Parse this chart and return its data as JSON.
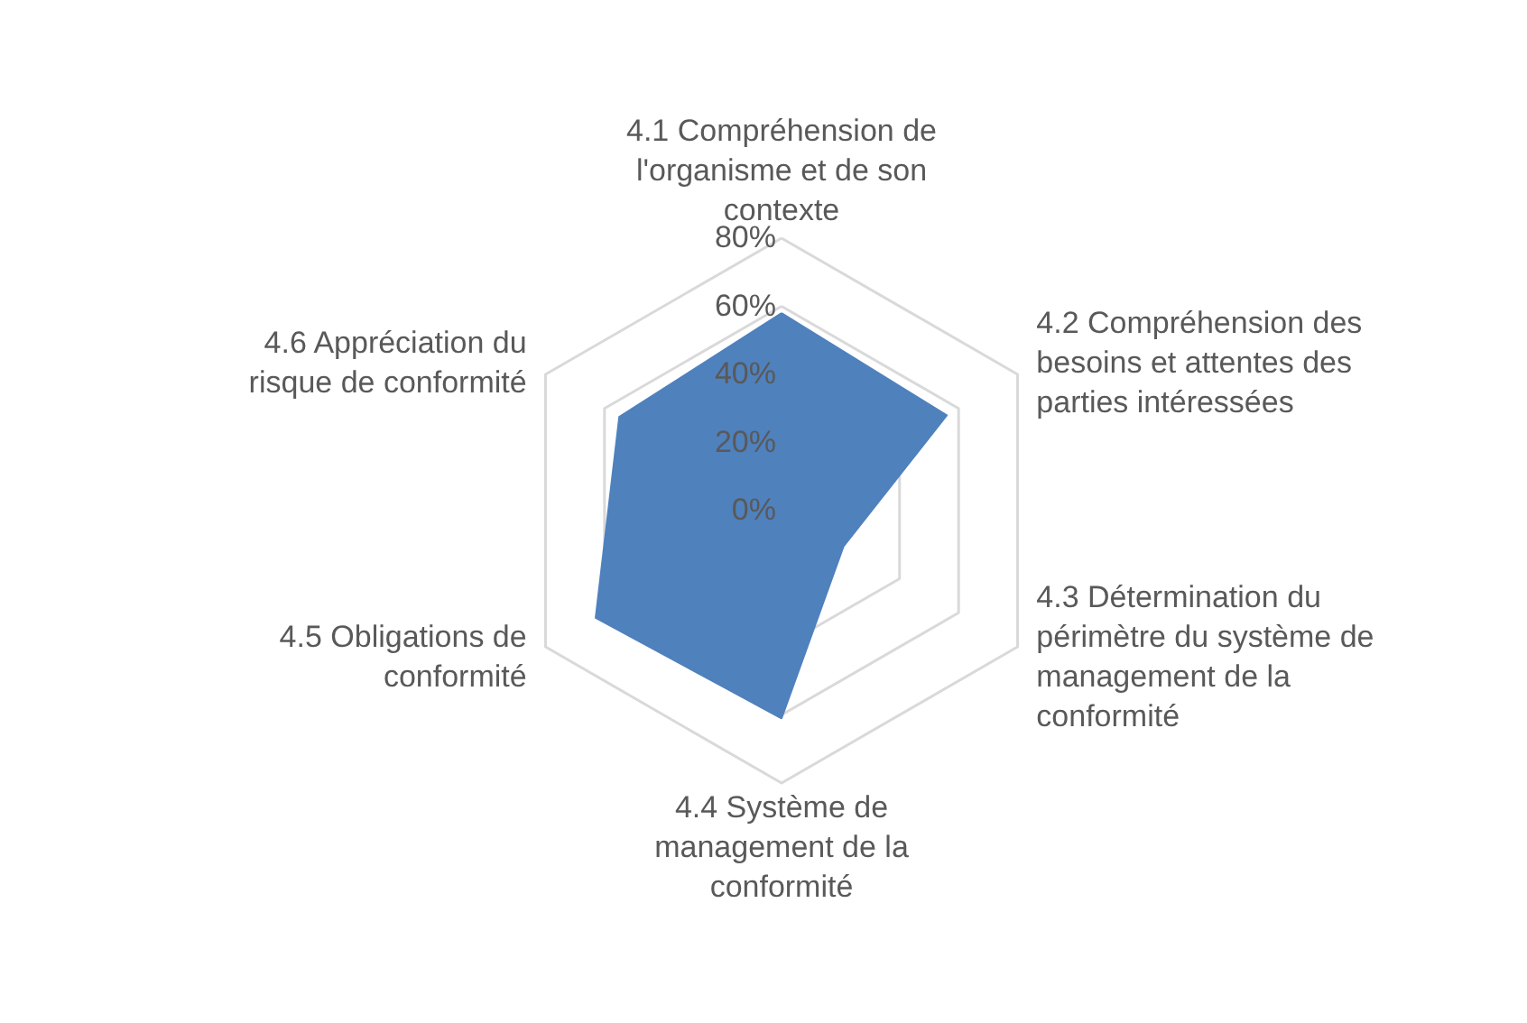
{
  "chart_data": {
    "type": "radar",
    "categories": [
      "4.1 Compréhension de l'organisme et de son contexte",
      "4.2 Compréhension des besoins et attentes des parties intéressées",
      "4.3 Détermination du périmètre du système de management de la conformité",
      "4.4 Système de management de la conformité",
      "4.5 Obligations de conformité",
      "4.6 Appréciation du risque de conformité"
    ],
    "series": [
      {
        "color": "#4f81bd",
        "values": [
          58,
          56,
          21,
          61,
          63,
          55
        ]
      }
    ],
    "ylim": [
      0,
      80
    ],
    "yticks": [
      {
        "value": 0,
        "label": "0%"
      },
      {
        "value": 20,
        "label": "20%"
      },
      {
        "value": 40,
        "label": "40%"
      },
      {
        "value": 60,
        "label": "60%"
      },
      {
        "value": 80,
        "label": "80%"
      }
    ],
    "grid": true
  }
}
